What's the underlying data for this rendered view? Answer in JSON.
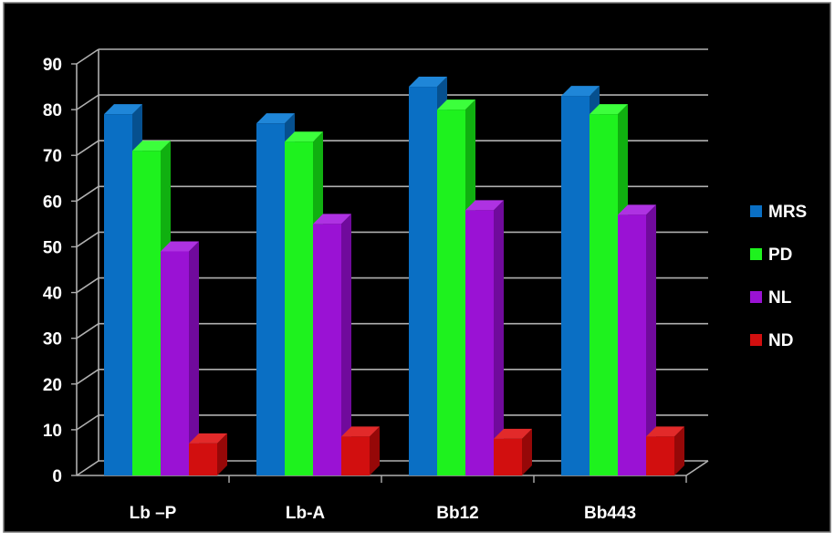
{
  "chart_data": {
    "type": "bar",
    "title": "",
    "xlabel": "",
    "ylabel": "",
    "categories": [
      "Lb –P",
      "Lb-A",
      "Bb12",
      "Bb443"
    ],
    "series": [
      {
        "name": "MRS",
        "values": [
          79,
          77,
          85,
          83
        ]
      },
      {
        "name": "PD",
        "values": [
          71,
          73,
          80,
          79
        ]
      },
      {
        "name": "NL",
        "values": [
          49,
          55,
          58,
          57
        ]
      },
      {
        "name": "ND",
        "values": [
          7,
          8.5,
          8,
          8.5
        ]
      }
    ],
    "ylim": [
      0,
      90
    ],
    "yticks": [
      "0",
      "10",
      "20",
      "30",
      "40",
      "50",
      "60",
      "70",
      "80",
      "90"
    ],
    "grid": true,
    "legend_position": "right",
    "three_d": true,
    "background": "#000000",
    "text_color": "#ffffff",
    "series_colors": {
      "MRS": {
        "front": "#0a6fc4",
        "side": "#06508f",
        "top": "#1f86d8"
      },
      "PD": {
        "front": "#1ef21e",
        "side": "#10b010",
        "top": "#3cff3c"
      },
      "NL": {
        "front": "#9a12d4",
        "side": "#700a9c",
        "top": "#ae32e2"
      },
      "ND": {
        "front": "#d20f0f",
        "side": "#960808",
        "top": "#e22a2a"
      }
    }
  }
}
